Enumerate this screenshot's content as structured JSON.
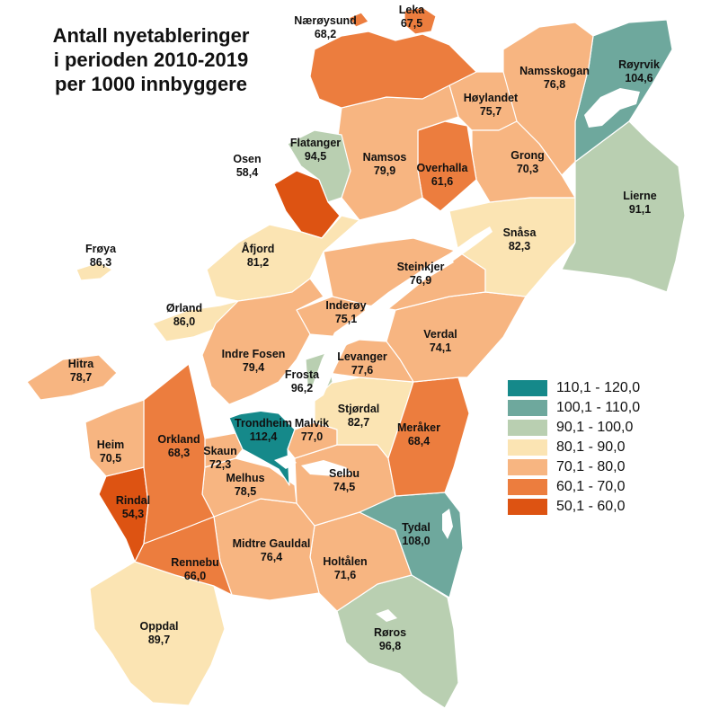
{
  "title": {
    "line1": "Antall nyetableringer",
    "line2": "i perioden 2010-2019",
    "line3": "per 1000 innbyggere"
  },
  "legend": [
    {
      "label": "110,1 - 120,0",
      "color": "#15898a"
    },
    {
      "label": "100,1 - 110,0",
      "color": "#6ea89d"
    },
    {
      "label": "90,1 - 100,0",
      "color": "#b9cfb1"
    },
    {
      "label": "80,1 - 90,0",
      "color": "#fbe4b3"
    },
    {
      "label": "70,1 - 80,0",
      "color": "#f7b581"
    },
    {
      "label": "60,1 - 70,0",
      "color": "#ec7d3e"
    },
    {
      "label": "50,1 - 60,0",
      "color": "#dd5312"
    }
  ],
  "municipalities": {
    "naeroysund": {
      "name": "Nærøysund",
      "value": "68,2"
    },
    "leka": {
      "name": "Leka",
      "value": "67,5"
    },
    "royrvik": {
      "name": "Røyrvik",
      "value": "104,6"
    },
    "namsskogan": {
      "name": "Namsskogan",
      "value": "76,8"
    },
    "hoylandet": {
      "name": "Høylandet",
      "value": "75,7"
    },
    "flatanger": {
      "name": "Flatanger",
      "value": "94,5"
    },
    "namsos": {
      "name": "Namsos",
      "value": "79,9"
    },
    "overhalla": {
      "name": "Overhalla",
      "value": "61,6"
    },
    "grong": {
      "name": "Grong",
      "value": "70,3"
    },
    "osen": {
      "name": "Osen",
      "value": "58,4"
    },
    "lierne": {
      "name": "Lierne",
      "value": "91,1"
    },
    "snasa": {
      "name": "Snåsa",
      "value": "82,3"
    },
    "froya": {
      "name": "Frøya",
      "value": "86,3"
    },
    "afjord": {
      "name": "Åfjord",
      "value": "81,2"
    },
    "steinkjer": {
      "name": "Steinkjer",
      "value": "76,9"
    },
    "orland": {
      "name": "Ørland",
      "value": "86,0"
    },
    "inderoy": {
      "name": "Inderøy",
      "value": "75,1"
    },
    "verdal": {
      "name": "Verdal",
      "value": "74,1"
    },
    "indrefosen": {
      "name": "Indre Fosen",
      "value": "79,4"
    },
    "levanger": {
      "name": "Levanger",
      "value": "77,6"
    },
    "hitra": {
      "name": "Hitra",
      "value": "78,7"
    },
    "frosta": {
      "name": "Frosta",
      "value": "96,2"
    },
    "stjordal": {
      "name": "Stjørdal",
      "value": "82,7"
    },
    "trondheim": {
      "name": "Trondheim",
      "value": "112,4"
    },
    "malvik": {
      "name": "Malvik",
      "value": "77,0"
    },
    "meraker": {
      "name": "Meråker",
      "value": "68,4"
    },
    "heim": {
      "name": "Heim",
      "value": "70,5"
    },
    "orkland": {
      "name": "Orkland",
      "value": "68,3"
    },
    "skaun": {
      "name": "Skaun",
      "value": "72,3"
    },
    "melhus": {
      "name": "Melhus",
      "value": "78,5"
    },
    "selbu": {
      "name": "Selbu",
      "value": "74,5"
    },
    "rindal": {
      "name": "Rindal",
      "value": "54,3"
    },
    "tydal": {
      "name": "Tydal",
      "value": "108,0"
    },
    "rennebu": {
      "name": "Rennebu",
      "value": "66,0"
    },
    "midtregauldal": {
      "name": "Midtre Gauldal",
      "value": "76,4"
    },
    "holtalen": {
      "name": "Holtålen",
      "value": "71,6"
    },
    "oppdal": {
      "name": "Oppdal",
      "value": "89,7"
    },
    "roros": {
      "name": "Røros",
      "value": "96,8"
    }
  }
}
